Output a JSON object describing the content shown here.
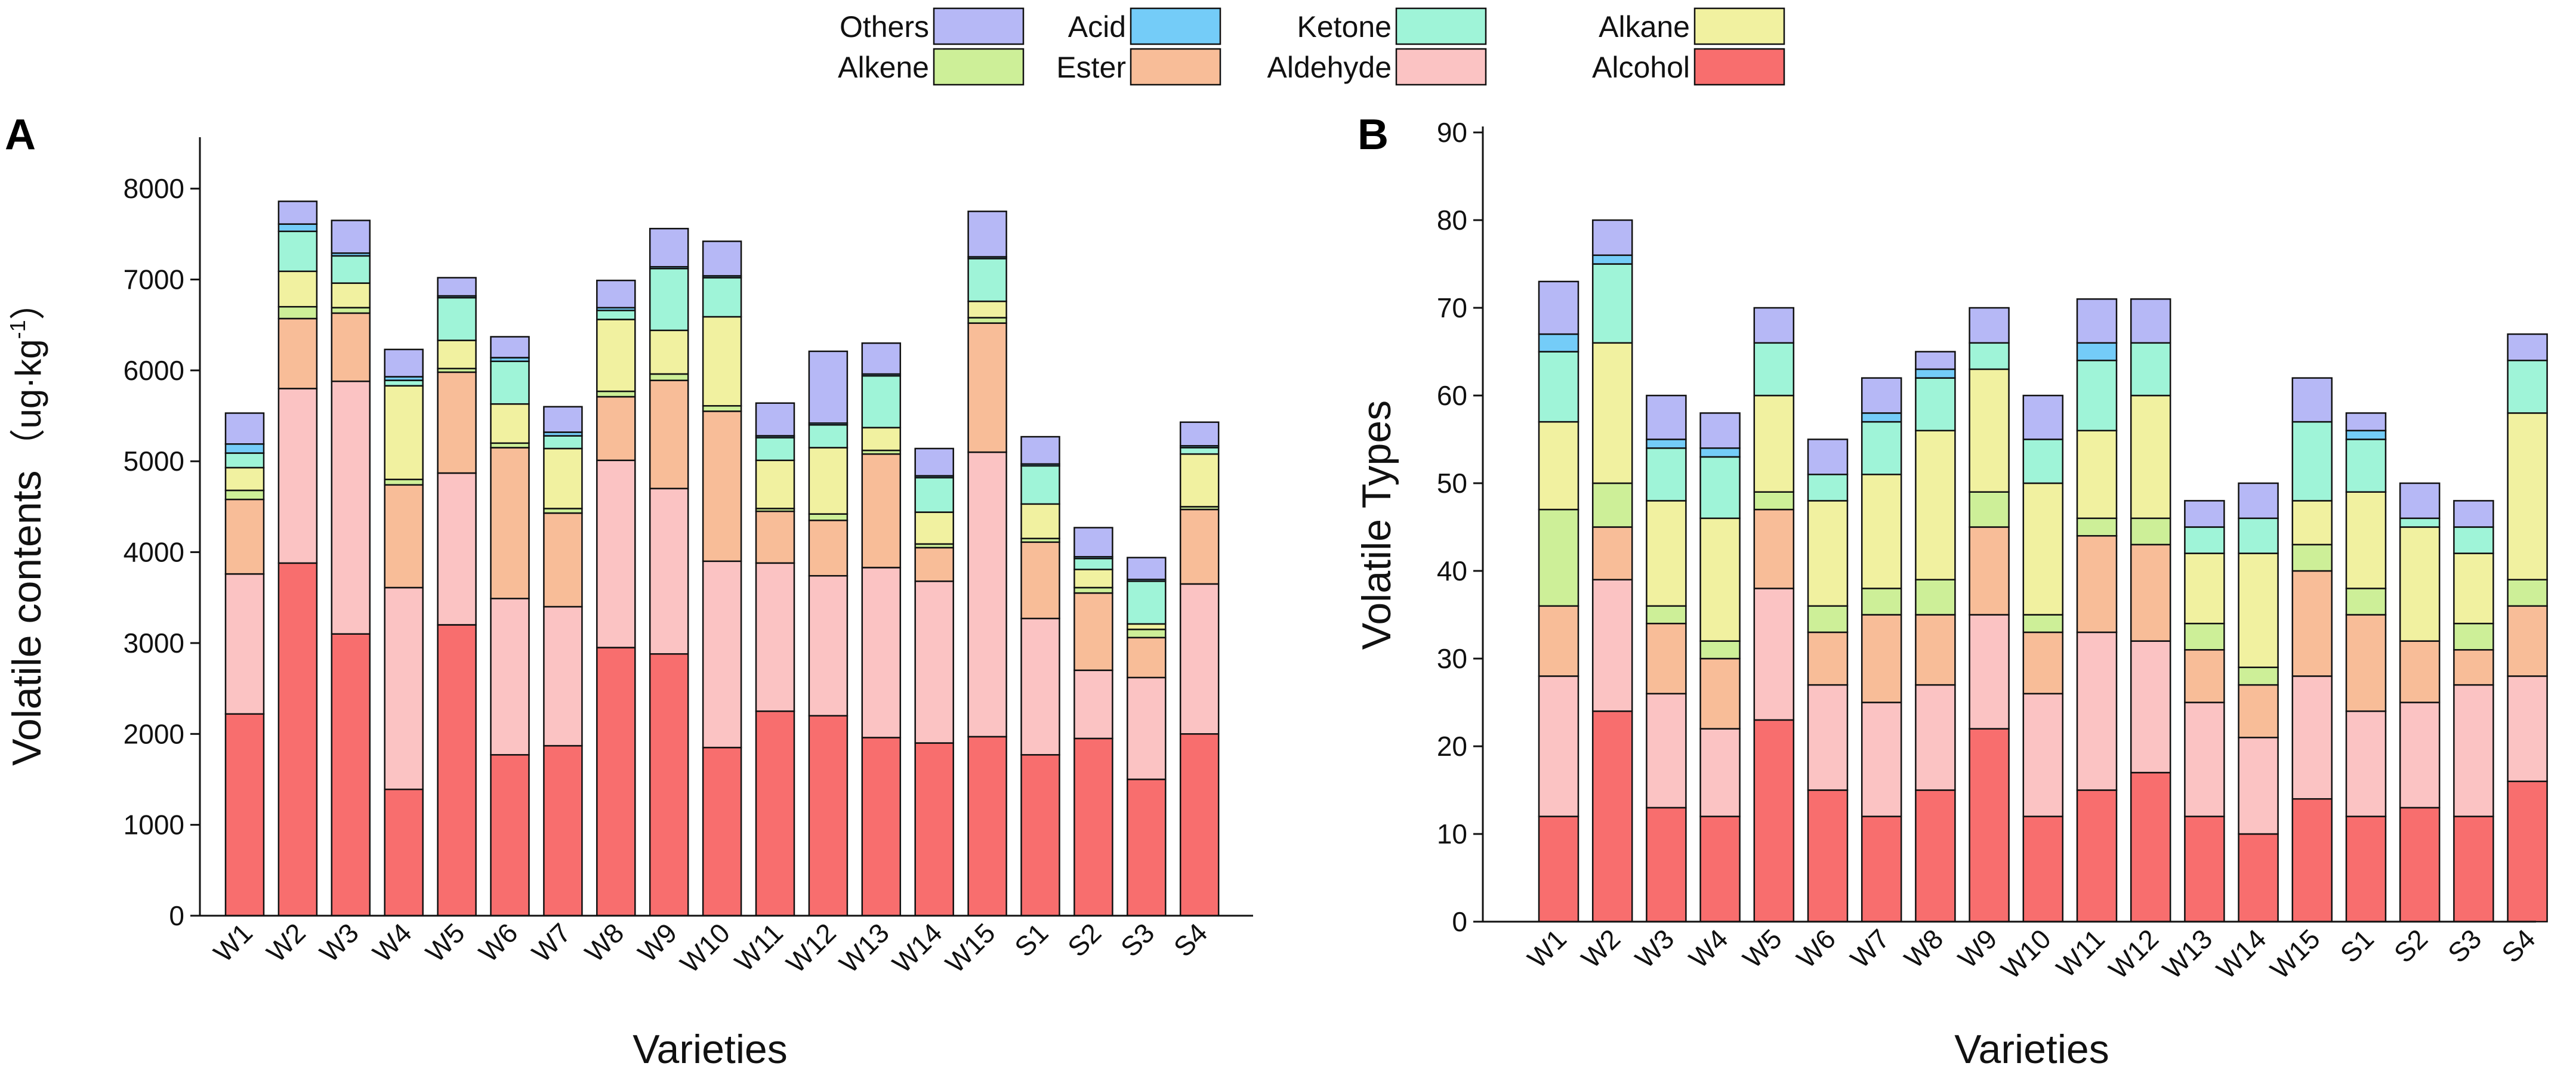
{
  "legend": {
    "items": [
      {
        "name": "Others",
        "color": "#B6B8F6"
      },
      {
        "name": "Acid",
        "color": "#74CCF8"
      },
      {
        "name": "Ketone",
        "color": "#9FF4D8"
      },
      {
        "name": "Alkane",
        "color": "#F1F1A0"
      },
      {
        "name": "Alkene",
        "color": "#CDEF98"
      },
      {
        "name": "Ester",
        "color": "#F8BD98"
      },
      {
        "name": "Aldehyde",
        "color": "#FBC3C3"
      },
      {
        "name": "Alcohol",
        "color": "#F86E6E"
      }
    ]
  },
  "chart_data": [
    {
      "panel": "A",
      "type": "bar",
      "stacked": true,
      "title": "",
      "xlabel": "Varieties",
      "ylabel_main": "Volatile contents",
      "ylabel_unit_open": "（ug·kg",
      "ylabel_unit_exp": "-1",
      "ylabel_unit_close": "）",
      "ylim": [
        0,
        8500
      ],
      "yticks": [
        0,
        1000,
        2000,
        3000,
        4000,
        5000,
        6000,
        7000,
        8000
      ],
      "categories": [
        "W1",
        "W2",
        "W3",
        "W4",
        "W5",
        "W6",
        "W7",
        "W8",
        "W9",
        "W10",
        "W11",
        "W12",
        "W13",
        "W14",
        "W15",
        "S1",
        "S2",
        "S3",
        "S4"
      ],
      "series": [
        {
          "name": "Alcohol",
          "color": "#F86E6E",
          "values": [
            2220,
            3880,
            3100,
            1390,
            3200,
            1770,
            1870,
            2950,
            2880,
            1850,
            2250,
            2200,
            1960,
            1900,
            1970,
            1770,
            1950,
            1500,
            2000
          ]
        },
        {
          "name": "Aldehyde",
          "color": "#FBC3C3",
          "values": [
            1540,
            1920,
            2780,
            2220,
            1670,
            1720,
            1530,
            2060,
            1820,
            2050,
            1630,
            1540,
            1870,
            1780,
            3130,
            1500,
            750,
            1120,
            1650
          ]
        },
        {
          "name": "Ester",
          "color": "#F8BD98",
          "values": [
            820,
            770,
            750,
            1130,
            1110,
            1660,
            1030,
            700,
            1190,
            1650,
            570,
            610,
            1250,
            370,
            1420,
            840,
            850,
            440,
            820
          ]
        },
        {
          "name": "Alkene",
          "color": "#CDEF98",
          "values": [
            100,
            130,
            60,
            60,
            40,
            50,
            50,
            60,
            70,
            60,
            30,
            70,
            40,
            40,
            60,
            40,
            60,
            90,
            30
          ]
        },
        {
          "name": "Alkane",
          "color": "#F1F1A0",
          "values": [
            250,
            390,
            270,
            1030,
            310,
            430,
            660,
            790,
            480,
            980,
            530,
            730,
            250,
            350,
            180,
            380,
            200,
            60,
            580
          ]
        },
        {
          "name": "Ketone",
          "color": "#9FF4D8",
          "values": [
            160,
            440,
            300,
            60,
            470,
            470,
            140,
            100,
            680,
            430,
            250,
            250,
            570,
            380,
            470,
            420,
            120,
            470,
            70
          ]
        },
        {
          "name": "Acid",
          "color": "#74CCF8",
          "values": [
            100,
            80,
            30,
            40,
            20,
            40,
            40,
            30,
            20,
            20,
            20,
            20,
            20,
            20,
            20,
            20,
            20,
            20,
            20
          ]
        },
        {
          "name": "Others",
          "color": "#B6B8F6",
          "values": [
            340,
            250,
            360,
            300,
            200,
            230,
            280,
            300,
            420,
            380,
            360,
            790,
            340,
            300,
            500,
            300,
            320,
            240,
            260
          ]
        }
      ]
    },
    {
      "panel": "B",
      "type": "bar",
      "stacked": true,
      "title": "",
      "xlabel": "Varieties",
      "ylabel_main": "Volatile Types",
      "ylim": [
        0,
        90
      ],
      "yticks": [
        0,
        10,
        20,
        30,
        40,
        50,
        60,
        70,
        80,
        90
      ],
      "categories": [
        "W1",
        "W2",
        "W3",
        "W4",
        "W5",
        "W6",
        "W7",
        "W8",
        "W9",
        "W10",
        "W11",
        "W12",
        "W13",
        "W14",
        "W15",
        "S1",
        "S2",
        "S3",
        "S4"
      ],
      "series": [
        {
          "name": "Alcohol",
          "color": "#F86E6E",
          "values": [
            12,
            24,
            13,
            12,
            23,
            15,
            12,
            15,
            22,
            12,
            15,
            17,
            12,
            10,
            14,
            12,
            13,
            12,
            16
          ]
        },
        {
          "name": "Aldehyde",
          "color": "#FBC3C3",
          "values": [
            16,
            15,
            13,
            10,
            15,
            12,
            13,
            12,
            13,
            14,
            18,
            15,
            13,
            11,
            14,
            12,
            12,
            15,
            12
          ]
        },
        {
          "name": "Ester",
          "color": "#F8BD98",
          "values": [
            8,
            6,
            8,
            8,
            9,
            6,
            10,
            8,
            10,
            7,
            11,
            11,
            6,
            6,
            12,
            11,
            7,
            4,
            8
          ]
        },
        {
          "name": "Alkene",
          "color": "#CDEF98",
          "values": [
            11,
            5,
            2,
            2,
            2,
            3,
            3,
            4,
            4,
            2,
            2,
            3,
            3,
            2,
            3,
            3,
            0,
            3,
            3
          ]
        },
        {
          "name": "Alkane",
          "color": "#F1F1A0",
          "values": [
            10,
            16,
            12,
            14,
            11,
            12,
            13,
            17,
            14,
            15,
            10,
            14,
            8,
            13,
            5,
            11,
            13,
            8,
            19
          ]
        },
        {
          "name": "Ketone",
          "color": "#9FF4D8",
          "values": [
            8,
            9,
            6,
            7,
            6,
            3,
            6,
            6,
            3,
            5,
            8,
            6,
            3,
            4,
            9,
            6,
            1,
            3,
            6
          ]
        },
        {
          "name": "Acid",
          "color": "#74CCF8",
          "values": [
            2,
            1,
            1,
            1,
            0,
            0,
            1,
            1,
            0,
            0,
            2,
            0,
            0,
            0,
            0,
            1,
            0,
            0,
            0
          ]
        },
        {
          "name": "Others",
          "color": "#B6B8F6",
          "values": [
            6,
            4,
            5,
            4,
            4,
            4,
            4,
            2,
            4,
            5,
            5,
            5,
            3,
            4,
            5,
            2,
            4,
            3,
            3
          ]
        }
      ]
    }
  ]
}
